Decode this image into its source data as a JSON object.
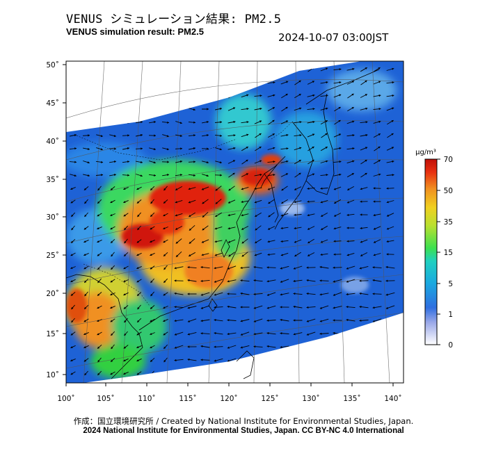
{
  "header": {
    "title_jp": "VENUS シミュレーション結果: PM2.5",
    "title_en": "VENUS simulation result: PM2.5",
    "timestamp": "2024-10-07 03:00JST"
  },
  "map": {
    "longitude_labels": [
      "100˚",
      "105˚",
      "110˚",
      "115˚",
      "120˚",
      "125˚",
      "130˚",
      "135˚",
      "140˚"
    ],
    "latitude_labels": [
      "50˚",
      "45˚",
      "40˚",
      "35˚",
      "30˚",
      "25˚",
      "20˚",
      "15˚",
      "10˚"
    ],
    "variable": "PM2.5",
    "colors": {
      "background_sea": "#1e62d6",
      "land_outside_domain": "#ffffff"
    }
  },
  "legend": {
    "unit": "μg/m³",
    "ticks": [
      "70",
      "50",
      "35",
      "15",
      "5",
      "1",
      "0"
    ],
    "colors": [
      "#ffffff",
      "#9aa8e8",
      "#2f6fe0",
      "#1aa8e0",
      "#20d0c0",
      "#3ce050",
      "#b8e030",
      "#f0d020",
      "#f09020",
      "#e83010",
      "#c01008"
    ]
  },
  "footer": {
    "credit": "作成：国立環境研究所 / Created by National Institute for Environmental Studies, Japan.",
    "copyright": "2024 National Institute for Environmental Studies, Japan. CC BY-NC 4.0 International"
  }
}
